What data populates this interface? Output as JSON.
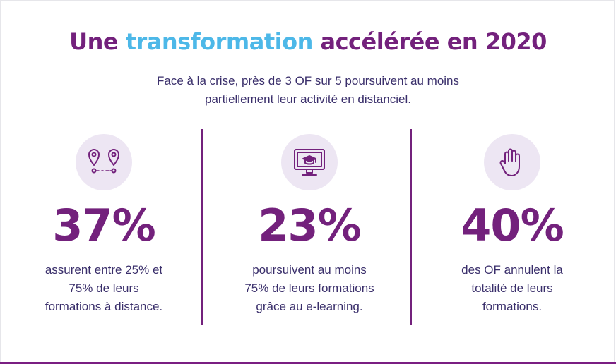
{
  "title": {
    "part1": "Une ",
    "highlight": "transformation",
    "part2": " accélérée en 2020"
  },
  "subtitle": "Face à la crise, près de 3 OF sur 5 poursuivent au moins partiellement leur activité en distanciel.",
  "stats": [
    {
      "icon": "location-route-icon",
      "value": "37%",
      "description": "assurent entre 25% et 75% de leurs formations à distance."
    },
    {
      "icon": "graduation-monitor-icon",
      "value": "23%",
      "description": "poursuivent au moins 75% de leurs formations grâce au e-learning."
    },
    {
      "icon": "stop-hand-icon",
      "value": "40%",
      "description": "des OF annulent la totalité de leurs formations."
    }
  ],
  "colors": {
    "primary": "#73217c",
    "accent": "#4db8e8",
    "text": "#3a2f6b",
    "icon_bg": "#ede6f3"
  }
}
